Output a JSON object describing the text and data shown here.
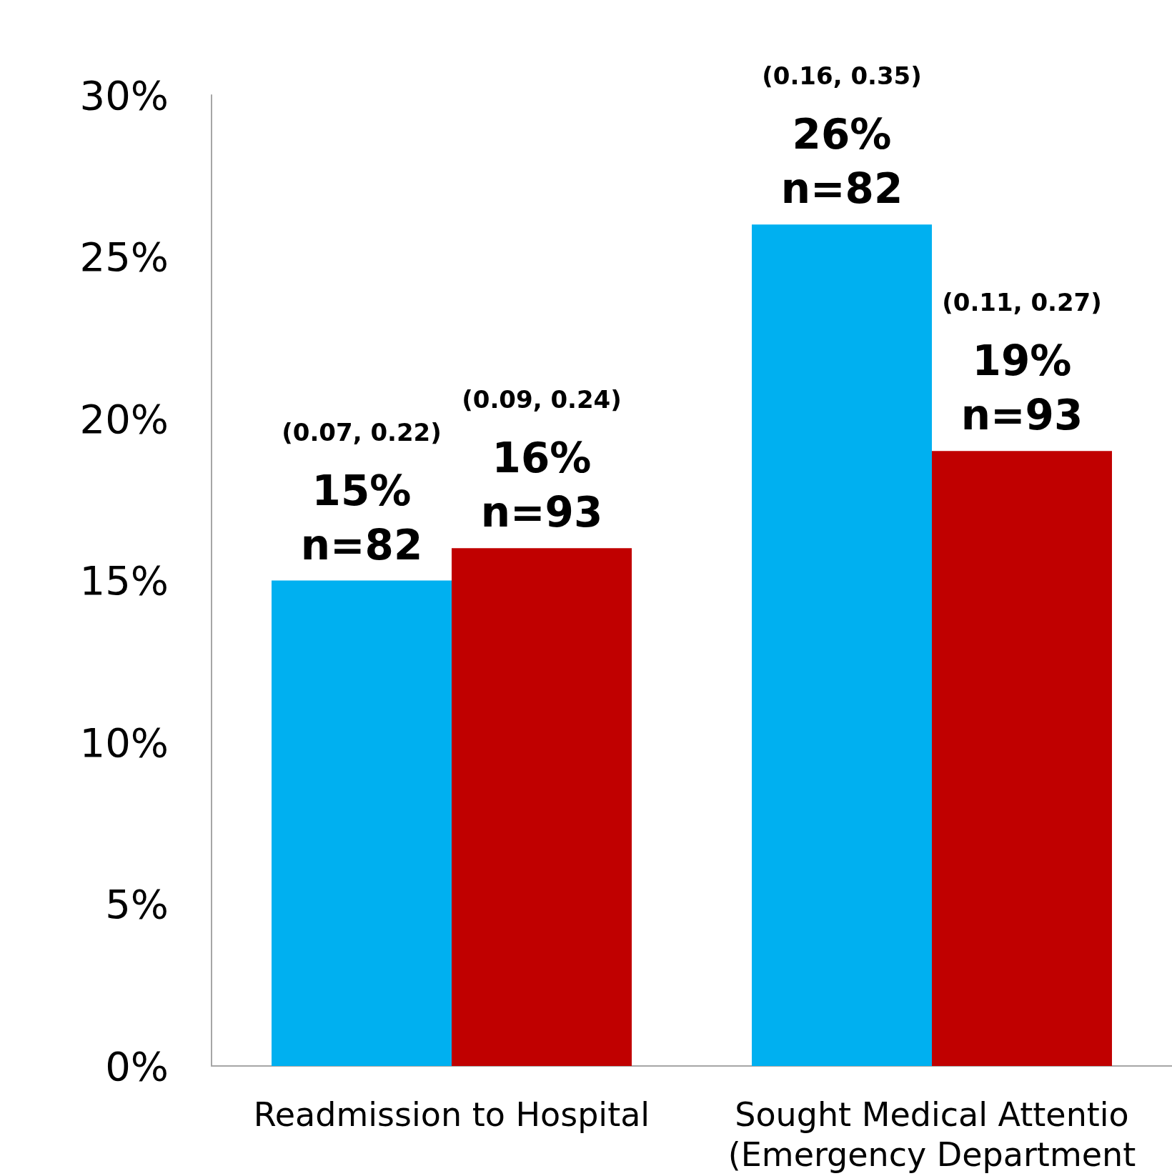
{
  "chart_data": {
    "type": "bar",
    "categories": [
      "Readmission to Hospital",
      "Sought Medical Attentio\n(Emergency Department"
    ],
    "series": [
      {
        "color": "#00b0f0",
        "values": [
          15,
          26
        ],
        "value_labels": [
          "(0.07, 0.22)\n15%\nn=82",
          "(0.16, 0.35)\n26%\nn=82"
        ]
      },
      {
        "color": "#c00000",
        "values": [
          16,
          19
        ],
        "value_labels": [
          "(0.09, 0.24)\n16%\nn=93",
          "(0.11, 0.27)\n19%\nn=93"
        ]
      }
    ],
    "ylim": [
      0,
      30
    ],
    "yticks": [
      {
        "value": 0,
        "label": "0%"
      },
      {
        "value": 5,
        "label": "5%"
      },
      {
        "value": 10,
        "label": "10%"
      },
      {
        "value": 15,
        "label": "15%"
      },
      {
        "value": 20,
        "label": "20%"
      },
      {
        "value": 25,
        "label": "25%"
      },
      {
        "value": 30,
        "label": "30%"
      }
    ],
    "grid": false
  }
}
